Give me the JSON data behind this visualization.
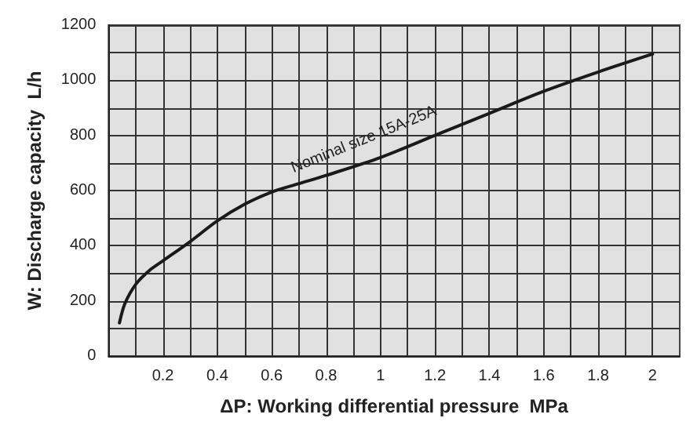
{
  "chart_data": {
    "type": "line",
    "xlabel": "ΔP: Working differential pressure  MPa",
    "ylabel": "W: Discharge capacity  L/h",
    "x": [
      0.04,
      0.06,
      0.1,
      0.15,
      0.2,
      0.3,
      0.4,
      0.5,
      0.6,
      0.7,
      0.8,
      1.0,
      1.2,
      1.4,
      1.6,
      1.8,
      2.0
    ],
    "series": [
      {
        "color": "#1a1a1a",
        "values": [
          120,
          190,
          260,
          310,
          345,
          415,
          490,
          550,
          595,
          625,
          655,
          720,
          800,
          880,
          960,
          1030,
          1095
        ]
      }
    ],
    "annotations": [
      {
        "text": "Nominal size 15A-25A",
        "x": 0.95,
        "y": 740
      }
    ],
    "xlim": [
      0,
      2.1
    ],
    "ylim": [
      0,
      1200
    ],
    "xticks": [
      {
        "value": 0.1,
        "label": null
      },
      0.2,
      {
        "value": 0.3,
        "label": null
      },
      0.4,
      {
        "value": 0.5,
        "label": null
      },
      0.6,
      {
        "value": 0.7,
        "label": null
      },
      0.8,
      {
        "value": 0.9,
        "label": null
      },
      1,
      {
        "value": 1.1,
        "label": null
      },
      1.2,
      {
        "value": 1.3,
        "label": null
      },
      1.4,
      {
        "value": 1.5,
        "label": null
      },
      1.6,
      {
        "value": 1.7,
        "label": null
      },
      1.8,
      {
        "value": 1.9,
        "label": null
      },
      2
    ],
    "yticks": [
      0,
      {
        "value": 100,
        "label": null
      },
      200,
      {
        "value": 300,
        "label": null
      },
      400,
      {
        "value": 500,
        "label": null
      },
      600,
      {
        "value": 700,
        "label": null
      },
      800,
      {
        "value": 900,
        "label": null
      },
      1000,
      {
        "value": 1100,
        "label": null
      },
      1200
    ],
    "grid": true,
    "marker": "none",
    "line_style": "solid"
  }
}
